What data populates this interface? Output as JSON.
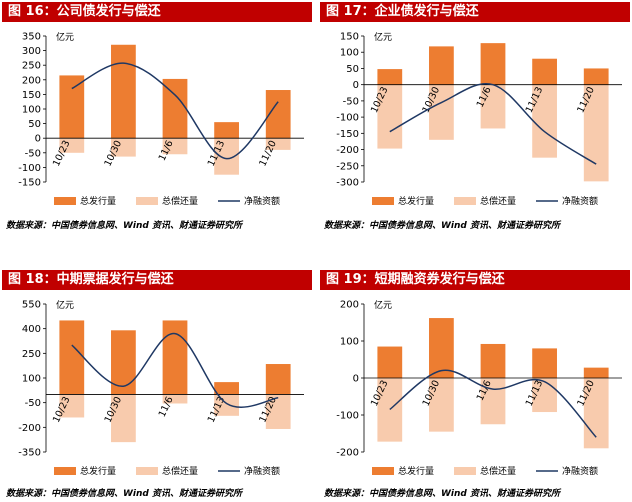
{
  "source_text": "数据来源：中国债券信息网、Wind 资讯、财通证券研究所",
  "chart_data": [
    {
      "type": "bar",
      "title": "图 16：公司债发行与偿还",
      "unit": "亿元",
      "categories": [
        "10/23",
        "10/30",
        "11/6",
        "11/13",
        "11/20"
      ],
      "ylim": [
        -150,
        350
      ],
      "yticks": [
        -150,
        -100,
        -50,
        0,
        50,
        100,
        150,
        200,
        250,
        300,
        350
      ],
      "series": [
        {
          "name": "总发行量",
          "kind": "bar",
          "color": "#ed7d31",
          "values": [
            215,
            320,
            203,
            55,
            165
          ]
        },
        {
          "name": "总偿还量",
          "kind": "bar",
          "color": "#f8cbad",
          "values": [
            -50,
            -63,
            -55,
            -125,
            -40
          ]
        },
        {
          "name": "净融资额",
          "kind": "line",
          "color": "#1f3864",
          "values": [
            170,
            257,
            148,
            -70,
            125
          ]
        }
      ],
      "legend_position": "bottom"
    },
    {
      "type": "bar",
      "title": "图 17：企业债发行与偿还",
      "unit": "亿元",
      "categories": [
        "10/23",
        "10/30",
        "11/6",
        "11/13",
        "11/20"
      ],
      "ylim": [
        -300,
        150
      ],
      "yticks": [
        -300,
        -250,
        -200,
        -150,
        -100,
        -50,
        0,
        50,
        100,
        150
      ],
      "series": [
        {
          "name": "总发行量",
          "kind": "bar",
          "color": "#ed7d31",
          "values": [
            48,
            118,
            128,
            80,
            50
          ]
        },
        {
          "name": "总偿还量",
          "kind": "bar",
          "color": "#f8cbad",
          "values": [
            -197,
            -170,
            -135,
            -225,
            -298
          ]
        },
        {
          "name": "净融资额",
          "kind": "line",
          "color": "#1f3864",
          "values": [
            -145,
            -55,
            0,
            -145,
            -245
          ]
        }
      ],
      "legend_position": "bottom"
    },
    {
      "type": "bar",
      "title": "图 18：中期票据发行与偿还",
      "unit": "亿元",
      "categories": [
        "10/23",
        "10/30",
        "11/6",
        "11/13",
        "11/20"
      ],
      "ylim": [
        -350,
        550
      ],
      "yticks": [
        -350,
        -200,
        -50,
        100,
        250,
        400,
        550
      ],
      "series": [
        {
          "name": "总发行量",
          "kind": "bar",
          "color": "#ed7d31",
          "values": [
            450,
            390,
            450,
            75,
            185
          ]
        },
        {
          "name": "总偿还量",
          "kind": "bar",
          "color": "#f8cbad",
          "values": [
            -140,
            -290,
            -55,
            -130,
            -210
          ]
        },
        {
          "name": "净融资额",
          "kind": "line",
          "color": "#1f3864",
          "values": [
            300,
            50,
            370,
            -55,
            -20
          ]
        }
      ],
      "legend_position": "bottom"
    },
    {
      "type": "bar",
      "title": "图 19：短期融资券发行与偿还",
      "unit": "亿元",
      "categories": [
        "10/23",
        "10/30",
        "11/6",
        "11/13",
        "11/20"
      ],
      "ylim": [
        -200,
        200
      ],
      "yticks": [
        -200,
        -100,
        0,
        100,
        200
      ],
      "series": [
        {
          "name": "总发行量",
          "kind": "bar",
          "color": "#ed7d31",
          "values": [
            85,
            162,
            92,
            80,
            28
          ]
        },
        {
          "name": "总偿还量",
          "kind": "bar",
          "color": "#f8cbad",
          "values": [
            -172,
            -145,
            -125,
            -92,
            -190
          ]
        },
        {
          "name": "净融资额",
          "kind": "line",
          "color": "#1f3864",
          "values": [
            -85,
            20,
            -30,
            -10,
            -160
          ]
        }
      ],
      "legend_position": "bottom"
    }
  ]
}
